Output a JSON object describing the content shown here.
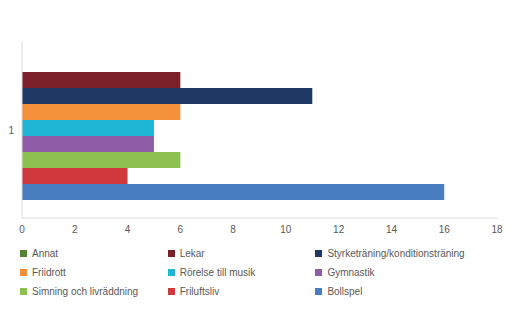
{
  "chart_data": {
    "type": "bar",
    "orientation": "horizontal",
    "categories": [
      "1"
    ],
    "series": [
      {
        "name": "Annat",
        "color": "#548235",
        "values": [
          0
        ]
      },
      {
        "name": "Lekar",
        "color": "#7b2028",
        "values": [
          6
        ]
      },
      {
        "name": "Styrketräning/konditionsträning",
        "color": "#1f3864",
        "values": [
          11
        ]
      },
      {
        "name": "Friidrott",
        "color": "#f4913a",
        "values": [
          6
        ]
      },
      {
        "name": "Rörelse till musik",
        "color": "#1fb5d4",
        "values": [
          5
        ]
      },
      {
        "name": "Gymnastik",
        "color": "#8e5ba7",
        "values": [
          5
        ]
      },
      {
        "name": "Simning och livräddning",
        "color": "#8cc152",
        "values": [
          6
        ]
      },
      {
        "name": "Friluftsliv",
        "color": "#d0393b",
        "values": [
          4
        ]
      },
      {
        "name": "Bollspel",
        "color": "#4a7cc0",
        "values": [
          16
        ]
      }
    ],
    "xlim": [
      0,
      18
    ],
    "xticks": [
      0,
      2,
      4,
      6,
      8,
      10,
      12,
      14,
      16,
      18
    ],
    "grid": false,
    "legend": "bottom"
  }
}
